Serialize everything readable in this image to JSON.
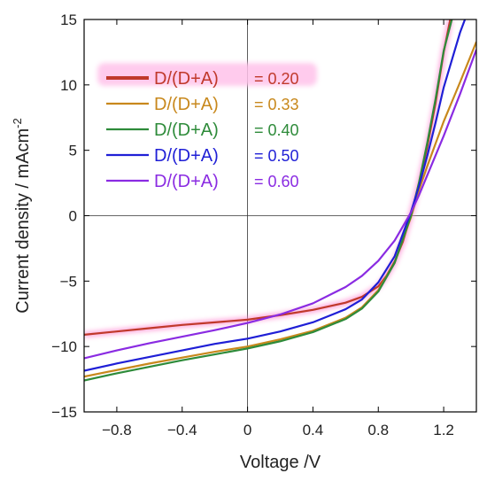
{
  "chart_data": {
    "type": "line",
    "xlabel": "Voltage /V",
    "ylabel_main": "Current density / mAcm",
    "ylabel_sup": "-2",
    "xlim": [
      -1.0,
      1.4
    ],
    "ylim": [
      -15,
      15
    ],
    "xticks": [
      -0.8,
      -0.4,
      0,
      0.4,
      0.8,
      1.2
    ],
    "xtick_labels": [
      "−0.8",
      "−0.4",
      "0",
      "0.4",
      "0.8",
      "1.2"
    ],
    "yticks": [
      -15,
      -10,
      -5,
      0,
      5,
      10,
      15
    ],
    "ytick_labels": [
      "−15",
      "−10",
      "−5",
      "0",
      "5",
      "10",
      "15"
    ],
    "zero_lines": true,
    "grid": false,
    "legend_position": "top-left",
    "series": [
      {
        "name": "D/(D+A)",
        "value_label": "= 0.20",
        "color": "#c0392b",
        "glow": true,
        "points": [
          [
            -1.0,
            -9.1
          ],
          [
            -0.8,
            -8.85
          ],
          [
            -0.6,
            -8.6
          ],
          [
            -0.4,
            -8.35
          ],
          [
            -0.2,
            -8.15
          ],
          [
            0,
            -7.95
          ],
          [
            0.2,
            -7.6
          ],
          [
            0.4,
            -7.2
          ],
          [
            0.6,
            -6.65
          ],
          [
            0.7,
            -6.2
          ],
          [
            0.8,
            -5.4
          ],
          [
            0.85,
            -4.6
          ],
          [
            0.9,
            -3.5
          ],
          [
            0.95,
            -2.0
          ],
          [
            1.0,
            0.1
          ],
          [
            1.05,
            2.5
          ],
          [
            1.1,
            5.3
          ],
          [
            1.15,
            8.6
          ],
          [
            1.2,
            12.5
          ],
          [
            1.24,
            15.0
          ]
        ]
      },
      {
        "name": "D/(D+A)",
        "value_label": "= 0.33",
        "color": "#c8881c",
        "glow": false,
        "points": [
          [
            -1.0,
            -12.3
          ],
          [
            -0.8,
            -11.8
          ],
          [
            -0.6,
            -11.3
          ],
          [
            -0.4,
            -10.85
          ],
          [
            -0.2,
            -10.4
          ],
          [
            0,
            -10.0
          ],
          [
            0.2,
            -9.45
          ],
          [
            0.4,
            -8.8
          ],
          [
            0.6,
            -7.8
          ],
          [
            0.7,
            -7.0
          ],
          [
            0.8,
            -5.7
          ],
          [
            0.9,
            -3.6
          ],
          [
            1.0,
            -0.1
          ],
          [
            1.05,
            2.0
          ],
          [
            1.1,
            3.8
          ],
          [
            1.15,
            5.5
          ],
          [
            1.2,
            7.2
          ],
          [
            1.3,
            10.2
          ],
          [
            1.4,
            13.3
          ]
        ]
      },
      {
        "name": "D/(D+A)",
        "value_label": "= 0.40",
        "color": "#2e8b3a",
        "glow": false,
        "points": [
          [
            -1.0,
            -12.6
          ],
          [
            -0.8,
            -12.05
          ],
          [
            -0.6,
            -11.55
          ],
          [
            -0.4,
            -11.05
          ],
          [
            -0.2,
            -10.6
          ],
          [
            0,
            -10.15
          ],
          [
            0.2,
            -9.6
          ],
          [
            0.4,
            -8.9
          ],
          [
            0.6,
            -7.9
          ],
          [
            0.7,
            -7.1
          ],
          [
            0.8,
            -5.8
          ],
          [
            0.9,
            -3.6
          ],
          [
            1.0,
            0.0
          ],
          [
            1.05,
            2.6
          ],
          [
            1.1,
            5.6
          ],
          [
            1.15,
            8.9
          ],
          [
            1.2,
            12.6
          ],
          [
            1.25,
            15.0
          ]
        ]
      },
      {
        "name": "D/(D+A)",
        "value_label": "= 0.50",
        "color": "#1f1fd6",
        "glow": false,
        "points": [
          [
            -1.0,
            -11.85
          ],
          [
            -0.8,
            -11.3
          ],
          [
            -0.6,
            -10.8
          ],
          [
            -0.4,
            -10.3
          ],
          [
            -0.2,
            -9.8
          ],
          [
            0,
            -9.4
          ],
          [
            0.2,
            -8.85
          ],
          [
            0.4,
            -8.15
          ],
          [
            0.6,
            -7.15
          ],
          [
            0.7,
            -6.4
          ],
          [
            0.8,
            -5.1
          ],
          [
            0.9,
            -3.1
          ],
          [
            1.0,
            0.3
          ],
          [
            1.05,
            2.3
          ],
          [
            1.1,
            4.6
          ],
          [
            1.15,
            7.1
          ],
          [
            1.2,
            9.8
          ],
          [
            1.3,
            14.0
          ],
          [
            1.33,
            15.0
          ]
        ]
      },
      {
        "name": "D/(D+A)",
        "value_label": "= 0.60",
        "color": "#8a2be2",
        "glow": false,
        "points": [
          [
            -1.0,
            -10.9
          ],
          [
            -0.8,
            -10.3
          ],
          [
            -0.6,
            -9.75
          ],
          [
            -0.4,
            -9.25
          ],
          [
            -0.2,
            -8.75
          ],
          [
            0,
            -8.2
          ],
          [
            0.2,
            -7.55
          ],
          [
            0.4,
            -6.7
          ],
          [
            0.6,
            -5.45
          ],
          [
            0.7,
            -4.6
          ],
          [
            0.8,
            -3.45
          ],
          [
            0.9,
            -1.9
          ],
          [
            1.0,
            0.25
          ],
          [
            1.05,
            1.6
          ],
          [
            1.1,
            3.1
          ],
          [
            1.2,
            6.1
          ],
          [
            1.3,
            9.3
          ],
          [
            1.4,
            12.7
          ]
        ]
      }
    ]
  }
}
